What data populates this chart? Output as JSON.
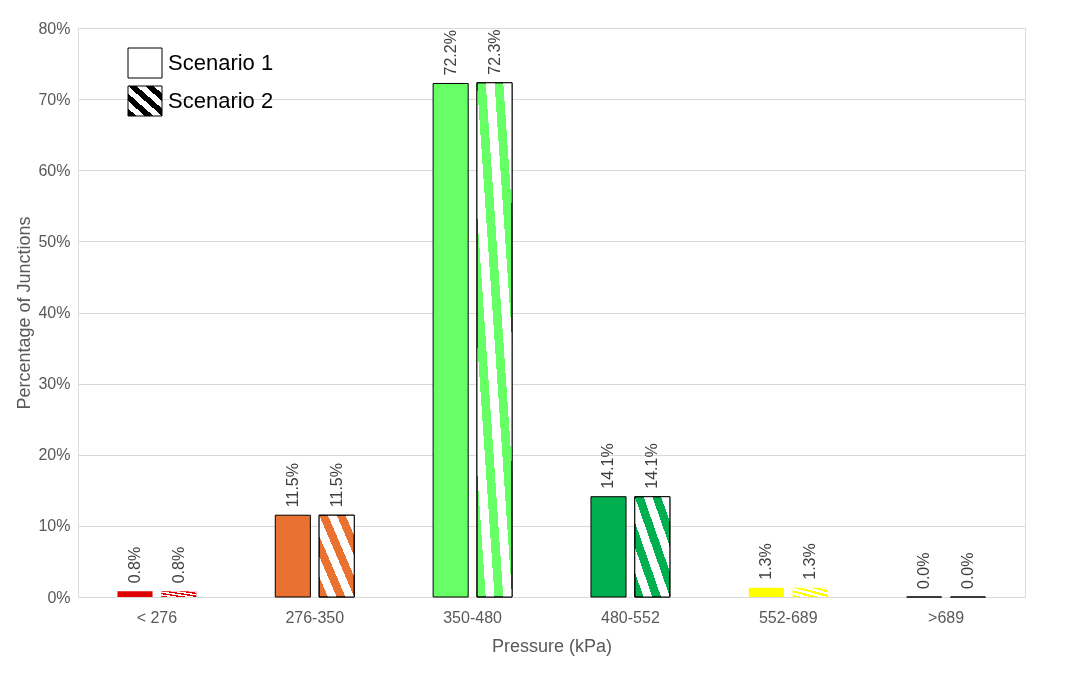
{
  "chart_data": {
    "type": "bar",
    "xlabel": "Pressure (kPa)",
    "ylabel": "Percentage of Junctions",
    "categories": [
      "< 276",
      "276-350",
      "350-480",
      "480-552",
      "552-689",
      ">689"
    ],
    "series": [
      {
        "name": "Scenario 1",
        "color": "#ffffff",
        "colors": [
          "#e00000",
          "#e97132",
          "#66ff66",
          "#00b050",
          "#ffff00",
          "#000000"
        ],
        "values": [
          0.8,
          11.5,
          72.2,
          14.1,
          1.3,
          0.0
        ],
        "value_labels": [
          "0.8%",
          "11.5%",
          "72.2%",
          "14.1%",
          "1.3%",
          "0.0%"
        ]
      },
      {
        "name": "Scenario 2",
        "color": "#000000",
        "colors": [
          "#e00000",
          "#e97132",
          "#66ff66",
          "#00b050",
          "#ffff00",
          "#000000"
        ],
        "values": [
          0.8,
          11.5,
          72.3,
          14.1,
          1.3,
          0.0
        ],
        "value_labels": [
          "0.8%",
          "11.5%",
          "72.3%",
          "14.1%",
          "1.3%",
          "0.0%"
        ]
      }
    ],
    "ylim": [
      0,
      80
    ],
    "yticks": [
      {
        "value": 0,
        "label": "0%"
      },
      {
        "value": 10,
        "label": "10%"
      },
      {
        "value": 20,
        "label": "20%"
      },
      {
        "value": 30,
        "label": "30%"
      },
      {
        "value": 40,
        "label": "40%"
      },
      {
        "value": 50,
        "label": "50%"
      },
      {
        "value": 60,
        "label": "60%"
      },
      {
        "value": 70,
        "label": "70%"
      },
      {
        "value": 80,
        "label": "80%"
      }
    ],
    "grid": "y",
    "legend": "top left"
  }
}
